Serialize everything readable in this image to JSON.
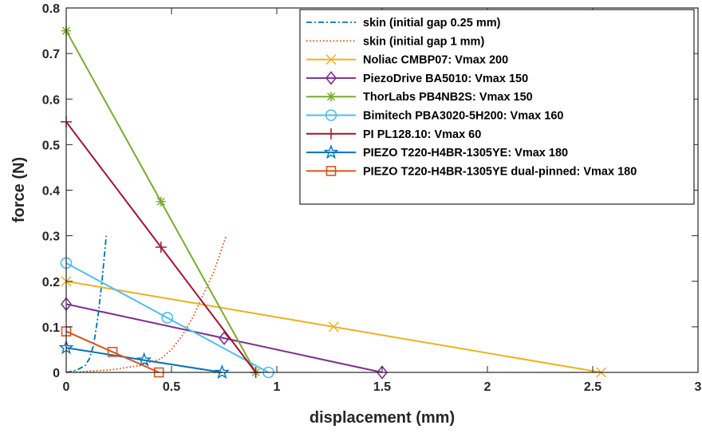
{
  "chart_data": {
    "type": "line",
    "title": "",
    "xlabel": "displacement (mm)",
    "ylabel": "force (N)",
    "xlim": [
      0,
      3
    ],
    "ylim": [
      0,
      0.8
    ],
    "xticks": [
      0,
      0.5,
      1,
      1.5,
      2,
      2.5,
      3
    ],
    "xtick_labels": [
      "0",
      "0.5",
      "1",
      "1.5",
      "2",
      "2.5",
      "3"
    ],
    "yticks": [
      0,
      0.1,
      0.2,
      0.3,
      0.4,
      0.5,
      0.6,
      0.7,
      0.8
    ],
    "ytick_labels": [
      "0",
      "0.1",
      "0.2",
      "0.3",
      "0.4",
      "0.5",
      "0.6",
      "0.7",
      "0.8"
    ],
    "grid": false,
    "legend_position": "top-right",
    "series": [
      {
        "name": "skin (initial gap 0.25 mm)",
        "color": "#0072BD",
        "style": "dashdot",
        "marker": "none",
        "x": [
          0,
          0.05,
          0.09,
          0.11,
          0.12,
          0.13,
          0.14,
          0.15,
          0.16,
          0.17,
          0.18,
          0.19
        ],
        "y": [
          0,
          0.005,
          0.015,
          0.03,
          0.045,
          0.06,
          0.09,
          0.12,
          0.16,
          0.2,
          0.25,
          0.3
        ]
      },
      {
        "name": "skin (initial gap 1 mm)",
        "color": "#D95319",
        "style": "dotted",
        "marker": "none",
        "x": [
          0,
          0.2,
          0.35,
          0.45,
          0.5,
          0.55,
          0.6,
          0.65,
          0.7,
          0.73,
          0.76
        ],
        "y": [
          0,
          0.005,
          0.015,
          0.03,
          0.05,
          0.08,
          0.12,
          0.17,
          0.22,
          0.26,
          0.3
        ]
      },
      {
        "name": "Noliac CMBP07: Vmax 200",
        "color": "#EDB120",
        "style": "solid",
        "marker": "x",
        "x": [
          0,
          1.27,
          2.54
        ],
        "y": [
          0.2,
          0.1,
          0
        ]
      },
      {
        "name": "PiezoDrive BA5010: Vmax 150",
        "color": "#7E2F8E",
        "style": "solid",
        "marker": "diamond",
        "x": [
          0,
          0.75,
          1.5
        ],
        "y": [
          0.15,
          0.075,
          0
        ]
      },
      {
        "name": "ThorLabs PB4NB2S: Vmax 150",
        "color": "#77AC30",
        "style": "solid",
        "marker": "asterisk",
        "x": [
          0,
          0.45,
          0.9
        ],
        "y": [
          0.75,
          0.375,
          0
        ]
      },
      {
        "name": "Bimitech PBA3020-5H200: Vmax 160",
        "color": "#4DBEEE",
        "style": "solid",
        "marker": "circle",
        "x": [
          0,
          0.48,
          0.96
        ],
        "y": [
          0.24,
          0.12,
          0
        ]
      },
      {
        "name": "PI PL128.10: Vmax  60",
        "color": "#A2142F",
        "style": "solid",
        "marker": "plus",
        "x": [
          0,
          0.45,
          0.9
        ],
        "y": [
          0.55,
          0.275,
          0
        ]
      },
      {
        "name": "PIEZO T220-H4BR-1305YE: Vmax 180",
        "color": "#0072BD",
        "style": "solid",
        "marker": "star",
        "x": [
          0,
          0.37,
          0.74
        ],
        "y": [
          0.054,
          0.027,
          0
        ]
      },
      {
        "name": "PIEZO T220-H4BR-1305YE dual-pinned: Vmax 180",
        "color": "#D95319",
        "style": "solid",
        "marker": "square",
        "x": [
          0,
          0.22,
          0.44
        ],
        "y": [
          0.09,
          0.045,
          0
        ]
      }
    ]
  }
}
